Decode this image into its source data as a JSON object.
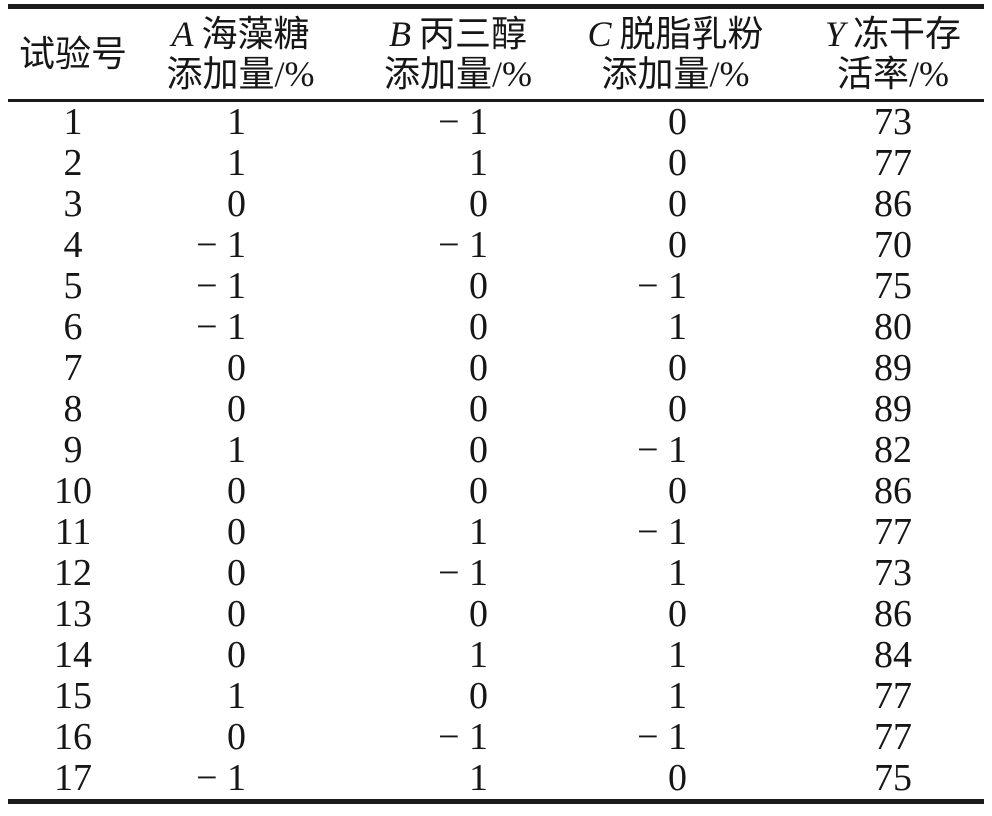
{
  "table": {
    "header": {
      "col_exp": "试验号",
      "factors": [
        {
          "letter": "A",
          "name": "海藻糖",
          "unit_line": "添加量/%"
        },
        {
          "letter": "B",
          "name": "丙三醇",
          "unit_line": "添加量/%"
        },
        {
          "letter": "C",
          "name": "脱脂乳粉",
          "unit_line": "添加量/%"
        },
        {
          "letter": "Y",
          "name": "冻干存",
          "unit_line": "活率/%"
        }
      ]
    },
    "rows": [
      {
        "no": "1",
        "a": "1",
        "b": "− 1",
        "c": "0",
        "y": "73"
      },
      {
        "no": "2",
        "a": "1",
        "b": "1",
        "c": "0",
        "y": "77"
      },
      {
        "no": "3",
        "a": "0",
        "b": "0",
        "c": "0",
        "y": "86"
      },
      {
        "no": "4",
        "a": "− 1",
        "b": "− 1",
        "c": "0",
        "y": "70"
      },
      {
        "no": "5",
        "a": "− 1",
        "b": "0",
        "c": "− 1",
        "y": "75"
      },
      {
        "no": "6",
        "a": "− 1",
        "b": "0",
        "c": "1",
        "y": "80"
      },
      {
        "no": "7",
        "a": "0",
        "b": "0",
        "c": "0",
        "y": "89"
      },
      {
        "no": "8",
        "a": "0",
        "b": "0",
        "c": "0",
        "y": "89"
      },
      {
        "no": "9",
        "a": "1",
        "b": "0",
        "c": "− 1",
        "y": "82"
      },
      {
        "no": "10",
        "a": "0",
        "b": "0",
        "c": "0",
        "y": "86"
      },
      {
        "no": "11",
        "a": "0",
        "b": "1",
        "c": "− 1",
        "y": "77"
      },
      {
        "no": "12",
        "a": "0",
        "b": "− 1",
        "c": "1",
        "y": "73"
      },
      {
        "no": "13",
        "a": "0",
        "b": "0",
        "c": "0",
        "y": "86"
      },
      {
        "no": "14",
        "a": "0",
        "b": "1",
        "c": "1",
        "y": "84"
      },
      {
        "no": "15",
        "a": "1",
        "b": "0",
        "c": "1",
        "y": "77"
      },
      {
        "no": "16",
        "a": "0",
        "b": "− 1",
        "c": "− 1",
        "y": "77"
      },
      {
        "no": "17",
        "a": "− 1",
        "b": "1",
        "c": "0",
        "y": "75"
      }
    ]
  },
  "chart_data": {
    "type": "table",
    "columns": [
      "试验号",
      "A 海藻糖 添加量/%",
      "B 丙三醇 添加量/%",
      "C 脱脂乳粉 添加量/%",
      "Y 冻干存活率/%"
    ],
    "rows": [
      [
        1,
        1,
        -1,
        0,
        73
      ],
      [
        2,
        1,
        1,
        0,
        77
      ],
      [
        3,
        0,
        0,
        0,
        86
      ],
      [
        4,
        -1,
        -1,
        0,
        70
      ],
      [
        5,
        -1,
        0,
        -1,
        75
      ],
      [
        6,
        -1,
        0,
        1,
        80
      ],
      [
        7,
        0,
        0,
        0,
        89
      ],
      [
        8,
        0,
        0,
        0,
        89
      ],
      [
        9,
        1,
        0,
        -1,
        82
      ],
      [
        10,
        0,
        0,
        0,
        86
      ],
      [
        11,
        0,
        1,
        -1,
        77
      ],
      [
        12,
        0,
        -1,
        1,
        73
      ],
      [
        13,
        0,
        0,
        0,
        86
      ],
      [
        14,
        0,
        1,
        1,
        84
      ],
      [
        15,
        1,
        0,
        1,
        77
      ],
      [
        16,
        0,
        -1,
        -1,
        77
      ],
      [
        17,
        -1,
        1,
        0,
        75
      ]
    ]
  }
}
